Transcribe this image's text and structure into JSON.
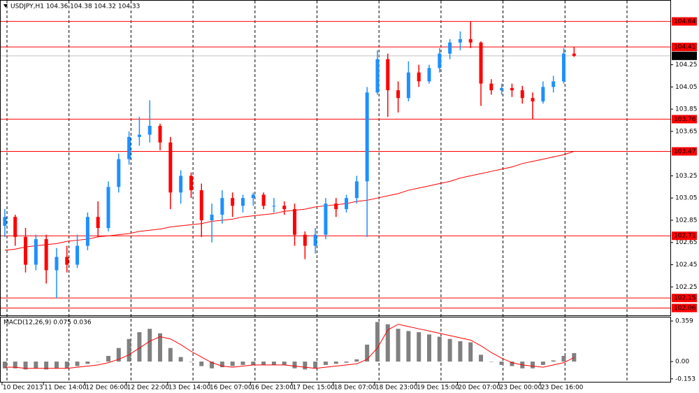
{
  "chart_data": [
    {
      "type": "candlestick",
      "title": "USDJPY,H1 104.36 104.38 104.32 104.33",
      "xlim": [
        -0.4,
        64.3
      ],
      "ylim": [
        102.0,
        104.82
      ],
      "xticks": [
        {
          "value": 0,
          "label": "10 Dec 2013"
        },
        {
          "value": 4,
          "label": "11 Dec 14:00"
        },
        {
          "value": 8,
          "label": "12 Dec 06:00"
        },
        {
          "value": 12,
          "label": "12 Dec 22:00"
        },
        {
          "value": 16,
          "label": "13 Dec 14:00"
        },
        {
          "value": 20,
          "label": "16 Dec 07:00"
        },
        {
          "value": 24,
          "label": "16 Dec 23:00"
        },
        {
          "value": 28,
          "label": "17 Dec 15:00"
        },
        {
          "value": 32,
          "label": "18 Dec 07:00"
        },
        {
          "value": 36,
          "label": "18 Dec 23:00"
        },
        {
          "value": 40,
          "label": "19 Dec 15:00"
        },
        {
          "value": 44,
          "label": "20 Dec 07:00"
        },
        {
          "value": 48,
          "label": "23 Dec 00:00"
        },
        {
          "value": 52,
          "label": "23 Dec 16:00"
        }
      ],
      "yticks": [
        102.25,
        102.45,
        102.65,
        102.85,
        103.05,
        103.25,
        103.65,
        103.85,
        104.05,
        104.25
      ],
      "up_color": "#1e90ff",
      "down_color": "#ff0000",
      "open": [
        102.8,
        102.88,
        102.7,
        102.45,
        102.68,
        102.4,
        102.52,
        102.45,
        102.62,
        102.88,
        102.78,
        103.15,
        103.4,
        103.6,
        103.62,
        103.7,
        103.55,
        103.1,
        103.25,
        103.12,
        102.85,
        102.9,
        103.05,
        102.98,
        103.05,
        103.08,
        102.98,
        102.98,
        102.95,
        102.72,
        102.62,
        102.72,
        103.0,
        102.95,
        103.05,
        103.2,
        104.0,
        104.3,
        104.02,
        103.95,
        104.18,
        104.1,
        104.22,
        104.35,
        104.45,
        104.48,
        104.45,
        104.08,
        104.02,
        104.04,
        104.02,
        103.95,
        103.92,
        104.05,
        104.1,
        104.35
      ],
      "high": [
        102.95,
        102.9,
        102.78,
        102.72,
        102.72,
        102.6,
        102.62,
        102.72,
        102.92,
        103.02,
        103.2,
        103.45,
        103.65,
        103.78,
        103.93,
        103.72,
        103.6,
        103.3,
        103.28,
        103.18,
        103.0,
        103.12,
        103.1,
        103.08,
        103.1,
        103.1,
        103.05,
        103.02,
        103.0,
        102.75,
        102.78,
        103.05,
        103.05,
        103.08,
        103.25,
        104.05,
        104.38,
        104.35,
        104.1,
        104.28,
        104.25,
        104.25,
        104.4,
        104.48,
        104.55,
        104.64,
        104.46,
        104.12,
        104.08,
        104.08,
        104.06,
        104.0,
        104.1,
        104.15,
        104.4,
        104.41
      ],
      "low": [
        102.7,
        102.62,
        102.38,
        102.4,
        102.28,
        102.15,
        102.38,
        102.42,
        102.58,
        102.7,
        102.75,
        103.1,
        103.35,
        103.52,
        103.55,
        103.48,
        102.95,
        103.0,
        103.05,
        102.7,
        102.65,
        102.82,
        102.88,
        102.92,
        102.98,
        102.95,
        102.92,
        102.9,
        102.62,
        102.5,
        102.55,
        102.68,
        102.88,
        102.92,
        103.0,
        102.7,
        103.98,
        103.78,
        103.82,
        103.92,
        104.05,
        104.08,
        104.18,
        104.3,
        104.38,
        104.4,
        103.88,
        103.98,
        103.98,
        103.96,
        103.9,
        103.76,
        103.9,
        104.0,
        104.08,
        104.32
      ],
      "close": [
        102.88,
        102.7,
        102.45,
        102.68,
        102.4,
        102.52,
        102.45,
        102.62,
        102.88,
        102.78,
        103.15,
        103.4,
        103.6,
        103.62,
        103.7,
        103.55,
        103.1,
        103.25,
        103.12,
        102.85,
        102.9,
        103.05,
        102.98,
        103.05,
        103.08,
        102.98,
        102.98,
        102.95,
        102.72,
        102.62,
        102.72,
        103.0,
        102.95,
        103.05,
        103.2,
        104.0,
        104.3,
        104.02,
        103.95,
        104.18,
        104.1,
        104.22,
        104.35,
        104.45,
        104.48,
        104.45,
        104.08,
        104.02,
        104.04,
        104.02,
        103.95,
        103.92,
        104.05,
        104.1,
        104.35,
        104.33
      ],
      "ma": {
        "color": "#ff0000",
        "values": [
          102.58,
          102.59,
          102.61,
          102.62,
          102.63,
          102.64,
          102.66,
          102.67,
          102.68,
          102.7,
          102.71,
          102.72,
          102.73,
          102.75,
          102.76,
          102.77,
          102.79,
          102.8,
          102.81,
          102.82,
          102.84,
          102.85,
          102.86,
          102.88,
          102.89,
          102.9,
          102.91,
          102.93,
          102.94,
          102.95,
          102.97,
          102.98,
          102.99,
          103.0,
          103.02,
          103.03,
          103.05,
          103.07,
          103.09,
          103.12,
          103.14,
          103.16,
          103.18,
          103.2,
          103.23,
          103.25,
          103.27,
          103.29,
          103.31,
          103.33,
          103.36,
          103.38,
          103.4,
          103.42,
          103.44,
          103.47
        ]
      },
      "levels": [
        104.64,
        104.41,
        103.76,
        103.47,
        102.71,
        102.15,
        102.06
      ],
      "level_color": "#ff0000",
      "current_price": 104.33
    },
    {
      "type": "macd",
      "title": "MACD(12,26,9) 0.075 0.036",
      "xlim": [
        -0.4,
        64.3
      ],
      "ylim": [
        -0.173,
        0.384
      ],
      "yticks": [
        -0.153,
        {
          "value": 0,
          "label": "0.00"
        },
        0.359
      ],
      "hist_color": "#808080",
      "signal_color": "#ff0000",
      "histogram": [
        -0.06,
        -0.06,
        -0.07,
        -0.06,
        -0.07,
        -0.06,
        -0.06,
        -0.04,
        -0.02,
        0.0,
        0.05,
        0.12,
        0.2,
        0.26,
        0.29,
        0.25,
        0.12,
        0.04,
        0.0,
        -0.04,
        -0.06,
        -0.05,
        -0.04,
        -0.03,
        -0.03,
        -0.03,
        -0.03,
        -0.03,
        -0.06,
        -0.07,
        -0.06,
        -0.03,
        -0.02,
        -0.01,
        0.02,
        0.15,
        0.35,
        0.33,
        0.29,
        0.27,
        0.26,
        0.24,
        0.22,
        0.2,
        0.18,
        0.17,
        0.06,
        0.0,
        -0.03,
        -0.04,
        -0.06,
        -0.06,
        -0.03,
        0.01,
        0.05,
        0.075
      ],
      "signal": [
        -0.05,
        -0.05,
        -0.06,
        -0.06,
        -0.06,
        -0.06,
        -0.06,
        -0.05,
        -0.04,
        -0.03,
        -0.01,
        0.02,
        0.06,
        0.12,
        0.18,
        0.22,
        0.2,
        0.15,
        0.09,
        0.04,
        -0.01,
        -0.04,
        -0.05,
        -0.04,
        -0.03,
        -0.03,
        -0.03,
        -0.03,
        -0.04,
        -0.05,
        -0.06,
        -0.05,
        -0.04,
        -0.03,
        -0.02,
        0.02,
        0.12,
        0.28,
        0.33,
        0.31,
        0.29,
        0.27,
        0.25,
        0.23,
        0.21,
        0.19,
        0.14,
        0.08,
        0.03,
        -0.01,
        -0.03,
        -0.04,
        -0.05,
        -0.03,
        -0.01,
        0.036
      ]
    }
  ]
}
